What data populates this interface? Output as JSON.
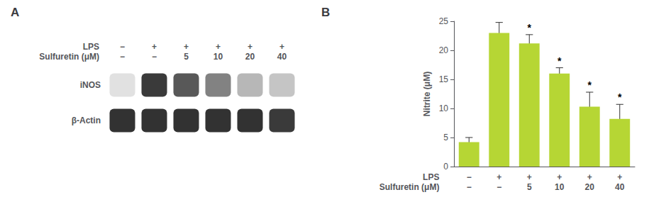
{
  "chart_data": [
    {
      "type": "heatmap",
      "title": "A",
      "categories": [
        "−\n−",
        "+\n−",
        "+\n5",
        "+\n10",
        "+\n20",
        "+\n40"
      ],
      "xlabel": "LPS\nSulfuretin (μM)",
      "rows": [
        "iNOS",
        "β-Actin"
      ],
      "cells": [
        [
          0.0,
          0.88,
          0.72,
          0.5,
          0.22,
          0.15
        ],
        [
          0.92,
          0.92,
          0.92,
          0.92,
          0.92,
          0.88
        ]
      ]
    },
    {
      "type": "bar",
      "title": "B",
      "categories": [
        "−\n−",
        "+\n−",
        "+\n5",
        "+\n10",
        "+\n20",
        "+\n40"
      ],
      "xlabel": "LPS\nSulfuretin (μM)",
      "ylabel": "Nitrite (μM)",
      "values": [
        4.2,
        23.0,
        21.2,
        16.0,
        10.3,
        8.2
      ],
      "errors": [
        0.8,
        1.8,
        1.5,
        1.0,
        2.5,
        2.5
      ],
      "ylim": [
        0,
        25
      ],
      "yticks": [
        0,
        5,
        10,
        15,
        20,
        25
      ],
      "grid": false,
      "annotations": [
        {
          "category": "+\n5",
          "text": "*"
        },
        {
          "category": "+\n10",
          "text": "*"
        },
        {
          "category": "+\n20",
          "text": "*"
        },
        {
          "category": "+\n40",
          "text": "*"
        }
      ]
    }
  ]
}
